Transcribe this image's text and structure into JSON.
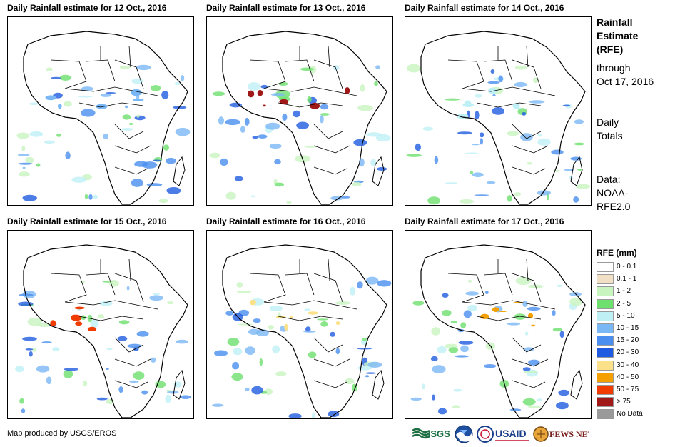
{
  "panels": [
    {
      "title": "Daily Rainfall estimate for 12 Oct., 2016",
      "accent_category": "10 - 15"
    },
    {
      "title": "Daily Rainfall estimate for 13 Oct., 2016",
      "accent_category": "> 75"
    },
    {
      "title": "Daily Rainfall estimate for 14 Oct., 2016",
      "accent_category": "5 - 10"
    },
    {
      "title": "Daily Rainfall estimate for 15 Oct., 2016",
      "accent_category": "50 - 75"
    },
    {
      "title": "Daily Rainfall estimate for 16 Oct., 2016",
      "accent_category": "30 - 40"
    },
    {
      "title": "Daily Rainfall estimate for 17 Oct., 2016",
      "accent_category": "40 - 50"
    }
  ],
  "side": {
    "title_lines": [
      "Rainfall",
      "Estimate",
      "(RFE)"
    ],
    "through_lines": [
      "through",
      "Oct 17, 2016"
    ],
    "totals_lines": [
      "Daily",
      "Totals"
    ],
    "data_lines": [
      "Data:",
      "NOAA-",
      "RFE2.0"
    ]
  },
  "legend": {
    "title": "RFE (mm)",
    "items": [
      {
        "label": "0 - 0.1",
        "color": "#ffffff"
      },
      {
        "label": "0.1 - 1",
        "color": "#f2e0c6"
      },
      {
        "label": "1 - 2",
        "color": "#c8f4c0"
      },
      {
        "label": "2 - 5",
        "color": "#6ee06e"
      },
      {
        "label": "5 - 10",
        "color": "#bff0f5"
      },
      {
        "label": "10 - 15",
        "color": "#7ab8f5"
      },
      {
        "label": "15 - 20",
        "color": "#4a8fef"
      },
      {
        "label": "20 - 30",
        "color": "#1f5be0"
      },
      {
        "label": "30 - 40",
        "color": "#fbe28a"
      },
      {
        "label": "40 - 50",
        "color": "#f3a000"
      },
      {
        "label": "50 - 75",
        "color": "#f03c00"
      },
      {
        "label": "> 75",
        "color": "#a01818"
      },
      {
        "label": "No Data",
        "color": "#9a9a9a"
      }
    ]
  },
  "footer": {
    "credit": "Map produced by USGS/EROS",
    "logos": [
      {
        "name": "usgs-logo",
        "text": "USGS"
      },
      {
        "name": "noaa-logo",
        "text": "NOAA"
      },
      {
        "name": "usaid-logo",
        "text": "USAID"
      },
      {
        "name": "fews-net-logo",
        "text": "FEWS NET"
      }
    ]
  }
}
